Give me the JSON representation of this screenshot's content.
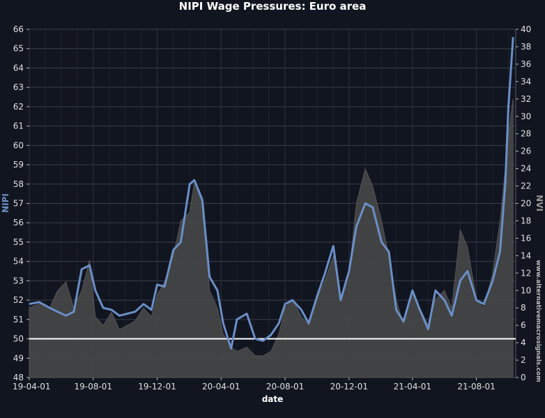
{
  "chart_data": {
    "type": "line",
    "title": "NIPI Wage Pressures: Euro area",
    "xlabel": "date",
    "ylabel_left": "NIPI",
    "ylabel_right": "NVI",
    "watermark": "www.alternativemacrosignals.com",
    "x_ticks": [
      "19-04-01",
      "19-08-01",
      "19-12-01",
      "20-04-01",
      "20-08-01",
      "20-12-01",
      "21-04-01",
      "21-08-01"
    ],
    "x_range": [
      "2019-04-01",
      "2021-10-15"
    ],
    "ylim_left": [
      48,
      66
    ],
    "ylim_right": [
      0,
      40
    ],
    "y_ticks_left": [
      48,
      49,
      50,
      51,
      52,
      53,
      54,
      55,
      56,
      57,
      58,
      59,
      60,
      61,
      62,
      63,
      64,
      65,
      66
    ],
    "y_ticks_right": [
      0,
      2,
      4,
      6,
      8,
      10,
      12,
      14,
      16,
      18,
      20,
      22,
      24,
      26,
      28,
      30,
      32,
      34,
      36,
      38,
      40
    ],
    "reference_line": 50,
    "colors": {
      "nipi": "#6b8fc7",
      "nvi": "#4a4a4a",
      "reference": "#ffffff",
      "background": "#111520",
      "grid": "#3a3f4b"
    },
    "series": [
      {
        "name": "NIPI",
        "axis": "left",
        "style": "line",
        "x": [
          "2019-04-01",
          "2019-04-20",
          "2019-05-10",
          "2019-05-25",
          "2019-06-10",
          "2019-06-25",
          "2019-07-10",
          "2019-07-25",
          "2019-08-05",
          "2019-08-20",
          "2019-09-05",
          "2019-09-20",
          "2019-10-05",
          "2019-10-20",
          "2019-11-05",
          "2019-11-20",
          "2019-12-01",
          "2019-12-15",
          "2020-01-01",
          "2020-01-15",
          "2020-02-01",
          "2020-02-10",
          "2020-02-25",
          "2020-03-10",
          "2020-03-25",
          "2020-04-05",
          "2020-04-20",
          "2020-05-01",
          "2020-05-20",
          "2020-06-05",
          "2020-06-20",
          "2020-07-05",
          "2020-07-20",
          "2020-08-01",
          "2020-08-15",
          "2020-09-01",
          "2020-09-15",
          "2020-10-01",
          "2020-10-15",
          "2020-11-01",
          "2020-11-15",
          "2020-12-01",
          "2020-12-15",
          "2021-01-01",
          "2021-01-15",
          "2021-02-01",
          "2021-02-15",
          "2021-03-01",
          "2021-03-15",
          "2021-04-01",
          "2021-04-15",
          "2021-05-01",
          "2021-05-15",
          "2021-06-01",
          "2021-06-15",
          "2021-07-01",
          "2021-07-15",
          "2021-08-01",
          "2021-08-15",
          "2021-09-01",
          "2021-09-15",
          "2021-09-25",
          "2021-10-01",
          "2021-10-10"
        ],
        "values": [
          51.8,
          51.9,
          51.6,
          51.4,
          51.2,
          51.4,
          53.6,
          53.8,
          52.5,
          51.6,
          51.5,
          51.2,
          51.3,
          51.4,
          51.8,
          51.5,
          52.8,
          52.7,
          54.6,
          55.0,
          58.0,
          58.2,
          57.2,
          53.2,
          52.5,
          50.8,
          49.5,
          51.0,
          51.3,
          50.0,
          49.9,
          50.2,
          50.8,
          51.8,
          52.0,
          51.5,
          50.8,
          52.2,
          53.3,
          54.8,
          52.0,
          53.5,
          55.8,
          57.0,
          56.8,
          55.0,
          54.5,
          51.5,
          50.9,
          52.5,
          51.5,
          50.5,
          52.5,
          52.0,
          51.2,
          53.0,
          53.5,
          52.0,
          51.8,
          53.0,
          54.5,
          58.0,
          62.0,
          65.6
        ]
      },
      {
        "name": "NVI",
        "axis": "right",
        "style": "area",
        "x": [
          "2019-04-01",
          "2019-04-20",
          "2019-05-10",
          "2019-05-25",
          "2019-06-10",
          "2019-06-25",
          "2019-07-10",
          "2019-07-25",
          "2019-08-05",
          "2019-08-20",
          "2019-09-05",
          "2019-09-20",
          "2019-10-05",
          "2019-10-20",
          "2019-11-05",
          "2019-11-20",
          "2019-12-01",
          "2019-12-15",
          "2020-01-01",
          "2020-01-15",
          "2020-02-01",
          "2020-02-10",
          "2020-02-25",
          "2020-03-10",
          "2020-03-25",
          "2020-04-05",
          "2020-04-20",
          "2020-05-01",
          "2020-05-20",
          "2020-06-05",
          "2020-06-20",
          "2020-07-05",
          "2020-07-20",
          "2020-08-01",
          "2020-08-15",
          "2020-09-01",
          "2020-09-15",
          "2020-10-01",
          "2020-10-15",
          "2020-11-01",
          "2020-11-15",
          "2020-12-01",
          "2020-12-15",
          "2021-01-01",
          "2021-01-15",
          "2021-02-01",
          "2021-02-15",
          "2021-03-01",
          "2021-03-15",
          "2021-04-01",
          "2021-04-15",
          "2021-05-01",
          "2021-05-15",
          "2021-06-01",
          "2021-06-15",
          "2021-07-01",
          "2021-07-15",
          "2021-08-01",
          "2021-08-15",
          "2021-09-01",
          "2021-09-15",
          "2021-09-25",
          "2021-10-01",
          "2021-10-10"
        ],
        "values": [
          8.0,
          8.5,
          8.0,
          10.0,
          11.0,
          8.0,
          10.0,
          13.5,
          7.0,
          6.0,
          7.5,
          5.5,
          6.0,
          6.5,
          8.0,
          7.0,
          9.5,
          11.0,
          14.0,
          18.0,
          19.0,
          22.5,
          20.0,
          10.0,
          8.0,
          5.0,
          3.5,
          3.0,
          3.5,
          2.5,
          2.5,
          3.0,
          5.0,
          8.0,
          9.0,
          7.0,
          6.0,
          9.0,
          11.0,
          14.0,
          9.0,
          12.0,
          20.0,
          24.0,
          22.0,
          18.0,
          14.0,
          9.0,
          6.0,
          10.0,
          8.0,
          6.0,
          9.0,
          10.0,
          8.0,
          17.0,
          15.0,
          9.0,
          8.0,
          12.0,
          18.0,
          24.0,
          28.0,
          32.0
        ]
      }
    ]
  }
}
